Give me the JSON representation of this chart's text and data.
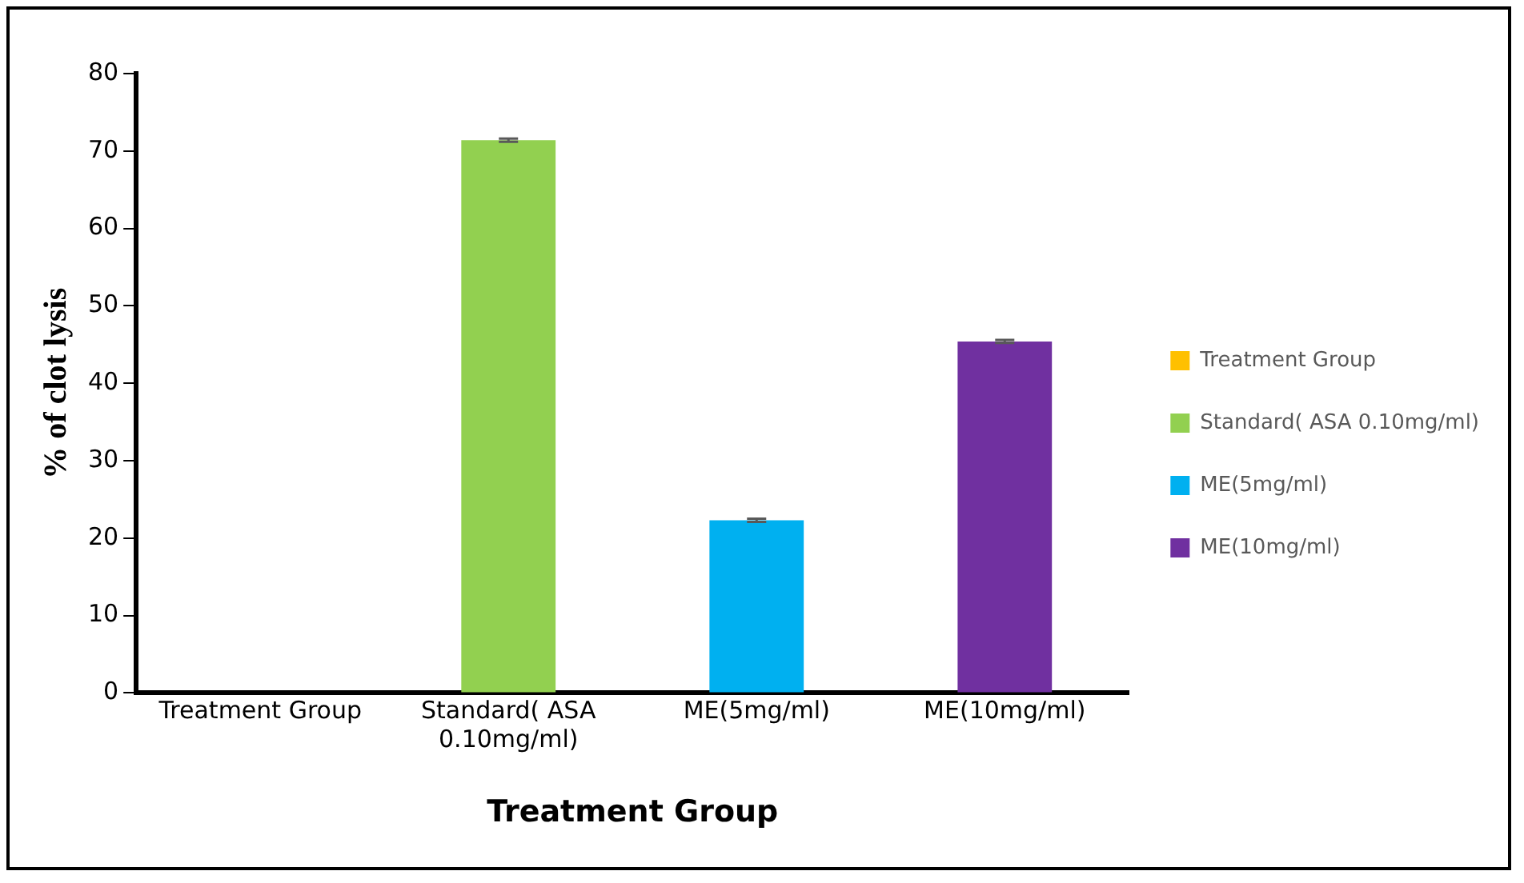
{
  "chart_data": {
    "type": "bar",
    "xlabel": "Treatment Group",
    "ylabel": "% of clot lysis",
    "categories": [
      "Treatment Group",
      "Standard( ASA 0.10mg/ml)",
      "ME(5mg/ml)",
      "ME(10mg/ml)"
    ],
    "series": [
      {
        "name": "Treatment Group",
        "color": "#ffc000",
        "values": [
          0,
          null,
          null,
          null
        ]
      },
      {
        "name": "Standard( ASA 0.10mg/ml)",
        "color": "#92d050",
        "values": [
          null,
          71.4,
          null,
          null
        ],
        "errors": [
          null,
          0.2,
          null,
          null
        ]
      },
      {
        "name": "ME(5mg/ml)",
        "color": "#00b0f0",
        "values": [
          null,
          null,
          22.3,
          null
        ],
        "errors": [
          null,
          null,
          0.2,
          null
        ]
      },
      {
        "name": "ME(10mg/ml)",
        "color": "#7030a0",
        "values": [
          null,
          null,
          null,
          45.4
        ],
        "errors": [
          null,
          null,
          null,
          0.2
        ]
      }
    ],
    "ylim": [
      0,
      80
    ],
    "yticks": [
      0,
      10,
      20,
      30,
      40,
      50,
      60,
      70,
      80
    ],
    "grid": false,
    "legend": "right"
  }
}
